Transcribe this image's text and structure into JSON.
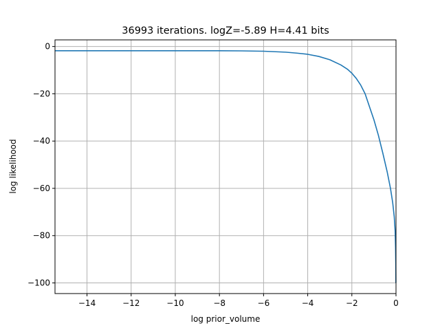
{
  "chart_data": {
    "type": "line",
    "title": "36993 iterations. logZ=-5.89 H=4.41 bits",
    "xlabel": "log prior_volume",
    "ylabel": "log likelihood",
    "xlim": [
      -15.45,
      0.0
    ],
    "ylim": [
      -104.5,
      2.8
    ],
    "xticks": [
      -14,
      -12,
      -10,
      -8,
      -6,
      -4,
      -2,
      0
    ],
    "xtick_labels": [
      "−14",
      "−12",
      "−10",
      "−8",
      "−6",
      "−4",
      "−2",
      "0"
    ],
    "yticks": [
      0,
      -20,
      -40,
      -60,
      -80,
      -100
    ],
    "ytick_labels": [
      "0",
      "−20",
      "−40",
      "−60",
      "−80",
      "−100"
    ],
    "grid": true,
    "series": [
      {
        "color": "#1f77b4",
        "x": [
          -15.45,
          -14,
          -12,
          -10,
          -8,
          -7,
          -6,
          -5,
          -4.5,
          -4,
          -3.5,
          -3,
          -2.5,
          -2.2,
          -2.0,
          -1.8,
          -1.6,
          -1.4,
          -1.2,
          -1.0,
          -0.8,
          -0.6,
          -0.4,
          -0.25,
          -0.15,
          -0.08,
          -0.04,
          -0.02,
          -0.01,
          -0.005
        ],
        "y": [
          -1.8,
          -1.8,
          -1.8,
          -1.8,
          -1.8,
          -1.85,
          -2.0,
          -2.4,
          -2.8,
          -3.3,
          -4.2,
          -5.6,
          -7.8,
          -9.6,
          -11.3,
          -13.5,
          -16.3,
          -20.0,
          -25.5,
          -31.0,
          -37.5,
          -45.0,
          -53.0,
          -60.0,
          -66.0,
          -72.0,
          -78.0,
          -85.0,
          -92.0,
          -100.0
        ]
      }
    ]
  }
}
